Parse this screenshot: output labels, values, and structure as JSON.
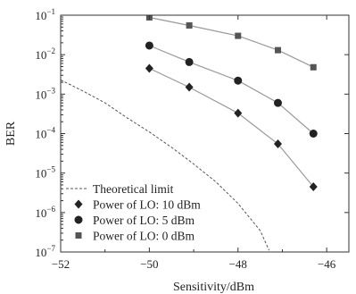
{
  "chart_data": {
    "type": "line",
    "title": "",
    "xlabel": "Sensitivity/dBm",
    "ylabel": "BER",
    "xlim": [
      -52,
      -45.5
    ],
    "ylim": [
      1e-07,
      0.1
    ],
    "yscale": "log",
    "x_ticks": [
      -52,
      -50,
      -48,
      -46
    ],
    "x_tick_labels": [
      "−52",
      "−50",
      "−48",
      "−46"
    ],
    "y_ticks": [
      0.1,
      0.01,
      0.001,
      0.0001,
      1e-05,
      1e-06,
      1e-07
    ],
    "y_tick_labels": [
      {
        "base": "10",
        "exp": "−1"
      },
      {
        "base": "10",
        "exp": "−2"
      },
      {
        "base": "10",
        "exp": "−3"
      },
      {
        "base": "10",
        "exp": "−4"
      },
      {
        "base": "10",
        "exp": "−5"
      },
      {
        "base": "10",
        "exp": "−6"
      },
      {
        "base": "10",
        "exp": "−7"
      }
    ],
    "grid": false,
    "legend_position": "bottom-left",
    "series": [
      {
        "name": "Theoretical limit",
        "style": "dashed",
        "marker": "none",
        "color": "#555555",
        "x": [
          -52.0,
          -51.5,
          -51.0,
          -50.5,
          -50.0,
          -49.5,
          -49.0,
          -48.5,
          -48.0,
          -47.5,
          -47.3
        ],
        "y": [
          0.0023,
          0.0012,
          0.0006,
          0.00025,
          0.00011,
          4.5e-05,
          1.7e-05,
          6e-06,
          1.7e-06,
          3.5e-07,
          1.1e-07
        ]
      },
      {
        "name": "Power of LO: 10 dBm",
        "style": "solid",
        "marker": "diamond",
        "color": "#222222",
        "x": [
          -50.0,
          -49.1,
          -48.0,
          -47.1,
          -46.3
        ],
        "y": [
          0.0045,
          0.0015,
          0.00033,
          5.5e-05,
          4.5e-06
        ]
      },
      {
        "name": "Power of LO: 5 dBm",
        "style": "solid",
        "marker": "circle",
        "color": "#222222",
        "x": [
          -50.0,
          -49.1,
          -48.0,
          -47.1,
          -46.3
        ],
        "y": [
          0.017,
          0.0065,
          0.0022,
          0.0006,
          0.0001
        ]
      },
      {
        "name": "Power of LO: 0 dBm",
        "style": "solid",
        "marker": "square",
        "color": "#555555",
        "x": [
          -50.0,
          -49.1,
          -48.0,
          -47.1,
          -46.3
        ],
        "y": [
          0.088,
          0.055,
          0.03,
          0.013,
          0.0048
        ]
      }
    ]
  }
}
